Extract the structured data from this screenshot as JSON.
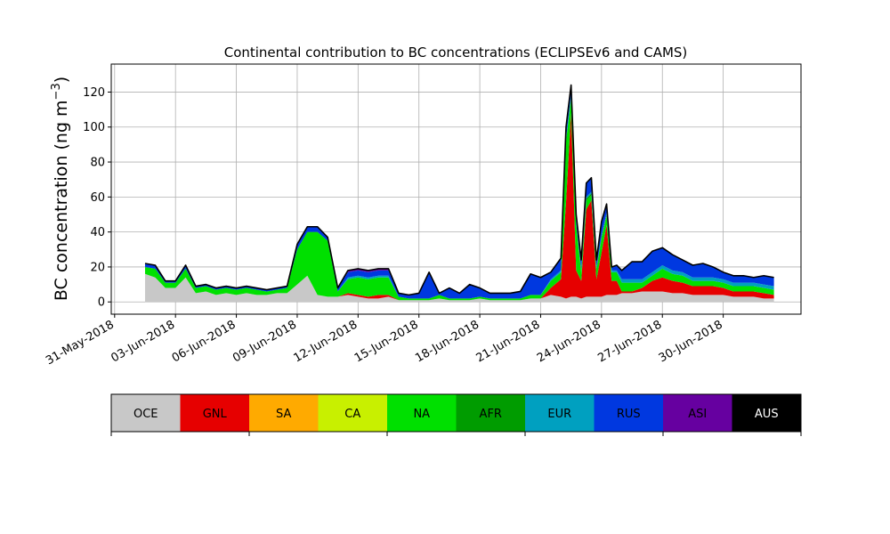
{
  "chart_data": {
    "type": "area",
    "title": "Continental contribution to BC concentrations (ECLIPSEv6 and CAMS)",
    "ylabel_main": "BC concentration (ng m",
    "ylabel_sup": "−3",
    "ylabel_close": ")",
    "xlabel": "",
    "xlim": [
      "2018-05-30T20:00",
      "2018-07-03T20:00"
    ],
    "ylim": [
      -7,
      136
    ],
    "grid": true,
    "x_ticks": [
      {
        "date": "2018-05-31",
        "label": "31-May-2018"
      },
      {
        "date": "2018-06-03",
        "label": "03-Jun-2018"
      },
      {
        "date": "2018-06-06",
        "label": "06-Jun-2018"
      },
      {
        "date": "2018-06-09",
        "label": "09-Jun-2018"
      },
      {
        "date": "2018-06-12",
        "label": "12-Jun-2018"
      },
      {
        "date": "2018-06-15",
        "label": "15-Jun-2018"
      },
      {
        "date": "2018-06-18",
        "label": "18-Jun-2018"
      },
      {
        "date": "2018-06-21",
        "label": "21-Jun-2018"
      },
      {
        "date": "2018-06-24",
        "label": "24-Jun-2018"
      },
      {
        "date": "2018-06-27",
        "label": "27-Jun-2018"
      },
      {
        "date": "2018-06-30",
        "label": "30-Jun-2018"
      }
    ],
    "y_ticks": [
      0,
      20,
      40,
      60,
      80,
      100,
      120
    ],
    "x": [
      "2018-06-01T12:00",
      "2018-06-02T00:00",
      "2018-06-02T12:00",
      "2018-06-03T00:00",
      "2018-06-03T12:00",
      "2018-06-04T00:00",
      "2018-06-04T12:00",
      "2018-06-05T00:00",
      "2018-06-05T12:00",
      "2018-06-06T00:00",
      "2018-06-06T12:00",
      "2018-06-07T00:00",
      "2018-06-07T12:00",
      "2018-06-08T00:00",
      "2018-06-08T12:00",
      "2018-06-09T00:00",
      "2018-06-09T12:00",
      "2018-06-10T00:00",
      "2018-06-10T12:00",
      "2018-06-11T00:00",
      "2018-06-11T12:00",
      "2018-06-12T00:00",
      "2018-06-12T12:00",
      "2018-06-13T00:00",
      "2018-06-13T12:00",
      "2018-06-14T00:00",
      "2018-06-14T12:00",
      "2018-06-15T00:00",
      "2018-06-15T12:00",
      "2018-06-16T00:00",
      "2018-06-16T12:00",
      "2018-06-17T00:00",
      "2018-06-17T12:00",
      "2018-06-18T00:00",
      "2018-06-18T12:00",
      "2018-06-19T00:00",
      "2018-06-19T12:00",
      "2018-06-20T00:00",
      "2018-06-20T12:00",
      "2018-06-21T00:00",
      "2018-06-21T12:00",
      "2018-06-22T00:00",
      "2018-06-22T06:00",
      "2018-06-22T12:00",
      "2018-06-22T18:00",
      "2018-06-23T00:00",
      "2018-06-23T06:00",
      "2018-06-23T12:00",
      "2018-06-23T18:00",
      "2018-06-24T00:00",
      "2018-06-24T06:00",
      "2018-06-24T12:00",
      "2018-06-24T18:00",
      "2018-06-25T00:00",
      "2018-06-25T12:00",
      "2018-06-26T00:00",
      "2018-06-26T12:00",
      "2018-06-27T00:00",
      "2018-06-27T12:00",
      "2018-06-28T00:00",
      "2018-06-28T12:00",
      "2018-06-29T00:00",
      "2018-06-29T12:00",
      "2018-06-30T00:00",
      "2018-06-30T12:00",
      "2018-07-01T00:00",
      "2018-07-01T12:00",
      "2018-07-02T00:00",
      "2018-07-02T12:00"
    ],
    "series": [
      {
        "name": "OCE",
        "color": "#c8c8c8",
        "values": [
          16,
          14,
          8,
          8,
          14,
          5,
          6,
          4,
          5,
          4,
          5,
          4,
          4,
          5,
          5,
          10,
          15,
          4,
          3,
          3,
          4,
          3,
          2,
          2,
          3,
          1,
          1,
          1,
          1,
          2,
          1,
          1,
          1,
          2,
          1,
          1,
          1,
          1,
          2,
          2,
          4,
          3,
          2,
          3,
          3,
          2,
          3,
          3,
          3,
          3,
          4,
          4,
          4,
          5,
          5,
          6,
          6,
          6,
          5,
          5,
          4,
          4,
          4,
          4,
          3,
          3,
          3,
          2,
          2
        ]
      },
      {
        "name": "GNL",
        "color": "#e60000",
        "values": [
          0,
          0,
          0,
          0,
          0,
          0,
          0,
          0,
          0,
          0,
          0,
          0,
          0,
          0,
          0,
          0,
          0,
          0,
          0,
          0,
          1,
          1,
          1,
          2,
          1,
          0,
          0,
          0,
          0,
          0,
          0,
          0,
          0,
          0,
          0,
          0,
          0,
          0,
          0,
          0,
          4,
          10,
          55,
          105,
          15,
          10,
          50,
          55,
          10,
          25,
          40,
          8,
          8,
          1,
          1,
          2,
          6,
          8,
          7,
          6,
          5,
          5,
          5,
          4,
          3,
          3,
          3,
          3,
          2
        ]
      },
      {
        "name": "SA",
        "color": "#ffaa00",
        "values": [
          0,
          0,
          0,
          0,
          0,
          0,
          0,
          0,
          0,
          0,
          0,
          0,
          0,
          0,
          0,
          0,
          0,
          0,
          0,
          0,
          0,
          0,
          0,
          0,
          0,
          0,
          0,
          0,
          0,
          0,
          0,
          0,
          0,
          0,
          0,
          0,
          0,
          0,
          0,
          0,
          0,
          0,
          0,
          0,
          0,
          0,
          0,
          0,
          0,
          0,
          0,
          0,
          0,
          0,
          0,
          0,
          0,
          0,
          0,
          0,
          0,
          0,
          0,
          0,
          0,
          0,
          0,
          0,
          0
        ]
      },
      {
        "name": "CA",
        "color": "#c8f000",
        "values": [
          0,
          0,
          0,
          0,
          0,
          0,
          0,
          0,
          0,
          0,
          0,
          0,
          0,
          0,
          0,
          0,
          0,
          0,
          0,
          0,
          0,
          0,
          0,
          0,
          0,
          0,
          0,
          0,
          0,
          0,
          0,
          0,
          0,
          0,
          0,
          0,
          0,
          0,
          0,
          0,
          0,
          0,
          0,
          0,
          0,
          0,
          0,
          0,
          0,
          0,
          0,
          0,
          0,
          0,
          0,
          0,
          0,
          0,
          0,
          0,
          0,
          0,
          0,
          0,
          0,
          0,
          0,
          0,
          0
        ]
      },
      {
        "name": "NA",
        "color": "#00e000",
        "values": [
          4,
          5,
          3,
          3,
          5,
          3,
          3,
          3,
          3,
          3,
          3,
          3,
          2,
          2,
          3,
          20,
          25,
          36,
          32,
          3,
          8,
          10,
          10,
          10,
          10,
          2,
          1,
          1,
          1,
          2,
          1,
          1,
          1,
          1,
          1,
          1,
          1,
          1,
          2,
          2,
          4,
          4,
          35,
          8,
          25,
          5,
          5,
          3,
          5,
          8,
          5,
          5,
          5,
          5,
          5,
          3,
          3,
          5,
          4,
          4,
          3,
          3,
          3,
          3,
          3,
          3,
          3,
          3,
          3
        ]
      },
      {
        "name": "AFR",
        "color": "#009c00",
        "values": [
          0,
          0,
          0,
          0,
          0,
          0,
          0,
          0,
          0,
          0,
          0,
          0,
          0,
          0,
          0,
          0,
          0,
          0,
          0,
          0,
          0,
          0,
          0,
          0,
          0,
          0,
          0,
          0,
          0,
          0,
          0,
          0,
          0,
          0,
          0,
          0,
          0,
          0,
          0,
          0,
          0,
          0,
          0,
          1,
          1,
          1,
          1,
          1,
          1,
          1,
          1,
          0,
          0,
          0,
          0,
          0,
          0,
          0,
          0,
          0,
          0,
          0,
          0,
          0,
          0,
          0,
          0,
          0,
          0
        ]
      },
      {
        "name": "EUR",
        "color": "#00a0c0",
        "values": [
          0,
          0,
          0,
          0,
          0,
          0,
          0,
          0,
          0,
          0,
          0,
          0,
          0,
          0,
          0,
          0,
          0,
          0,
          0,
          0,
          1,
          1,
          1,
          1,
          1,
          0,
          0,
          0,
          0,
          0,
          0,
          0,
          0,
          0,
          0,
          0,
          0,
          0,
          0,
          0,
          1,
          1,
          1,
          2,
          1,
          1,
          1,
          1,
          1,
          1,
          1,
          1,
          1,
          2,
          2,
          2,
          2,
          2,
          2,
          2,
          2,
          2,
          2,
          2,
          2,
          2,
          2,
          2,
          2
        ]
      },
      {
        "name": "RUS",
        "color": "#0038e0",
        "values": [
          2,
          2,
          1,
          1,
          2,
          1,
          1,
          1,
          1,
          1,
          1,
          1,
          1,
          1,
          1,
          3,
          3,
          3,
          2,
          2,
          3,
          3,
          3,
          3,
          3,
          2,
          2,
          3,
          15,
          1,
          6,
          3,
          8,
          5,
          3,
          3,
          3,
          4,
          12,
          10,
          4,
          7,
          7,
          5,
          5,
          5,
          8,
          8,
          4,
          8,
          5,
          2,
          3,
          5,
          10,
          10,
          12,
          10,
          9,
          7,
          7,
          8,
          6,
          4,
          4,
          4,
          3,
          5,
          5
        ]
      },
      {
        "name": "ASI",
        "color": "#6600a0",
        "values": [
          0,
          0,
          0,
          0,
          0,
          0,
          0,
          0,
          0,
          0,
          0,
          0,
          0,
          0,
          0,
          0,
          0,
          0,
          0,
          0,
          1,
          1,
          1,
          1,
          1,
          0,
          0,
          0,
          0,
          0,
          0,
          0,
          0,
          0,
          0,
          0,
          0,
          0,
          0,
          0,
          0,
          0,
          0,
          0,
          0,
          0,
          0,
          0,
          0,
          0,
          0,
          0,
          0,
          0,
          0,
          0,
          0,
          0,
          0,
          0,
          0,
          0,
          0,
          0,
          0,
          0,
          0,
          0,
          0
        ]
      },
      {
        "name": "AUS",
        "color": "#000000",
        "values": [
          0,
          0,
          0,
          0,
          0,
          0,
          0,
          0,
          0,
          0,
          0,
          0,
          0,
          0,
          0,
          0,
          0,
          0,
          0,
          0,
          0,
          0,
          0,
          0,
          0,
          0,
          0,
          0,
          0,
          0,
          0,
          0,
          0,
          0,
          0,
          0,
          0,
          0,
          0,
          0,
          0,
          0,
          0,
          0,
          0,
          0,
          0,
          0,
          0,
          0,
          0,
          0,
          0,
          0,
          0,
          0,
          0,
          0,
          0,
          0,
          0,
          0,
          0,
          0,
          0,
          0,
          0,
          0,
          0
        ]
      }
    ]
  }
}
